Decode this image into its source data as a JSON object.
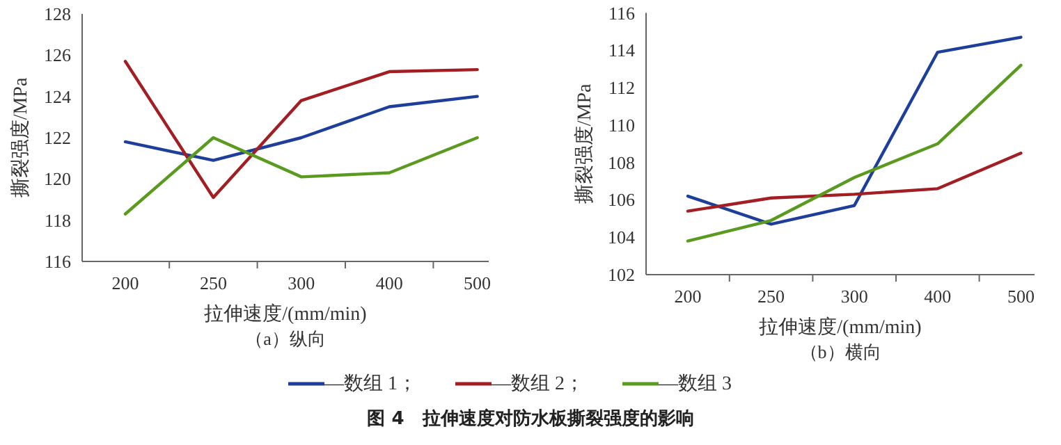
{
  "chart_data": [
    {
      "type": "line",
      "title": "（a）纵向",
      "xlabel": "拉伸速度/(mm/min)",
      "ylabel": "撕裂强度/MPa",
      "categories": [
        "200",
        "250",
        "300",
        "400",
        "500"
      ],
      "ylim": [
        116,
        128
      ],
      "yticks": [
        116,
        118,
        120,
        122,
        124,
        126,
        128
      ],
      "grid": false,
      "legend": "bottom",
      "marker": "none",
      "line_style": "solid",
      "annotations": [
        "图 4　拉伸速度对防水板撕裂强度的影响"
      ],
      "series": [
        {
          "name": "—数组 1；",
          "color": "#1d3f9b",
          "values": [
            121.8,
            120.9,
            122.0,
            123.5,
            124.0
          ]
        },
        {
          "name": "—数组 2；",
          "color": "#a31e22",
          "values": [
            125.7,
            119.1,
            123.8,
            125.2,
            125.3
          ]
        },
        {
          "name": "—数组 3",
          "color": "#5a9a1e",
          "values": [
            118.3,
            122.0,
            120.1,
            120.3,
            122.0
          ]
        }
      ]
    },
    {
      "type": "line",
      "title": "（b）横向",
      "xlabel": "拉伸速度/(mm/min)",
      "ylabel": "撕裂强度/MPa",
      "categories": [
        "200",
        "250",
        "300",
        "400",
        "500"
      ],
      "ylim": [
        102,
        116
      ],
      "yticks": [
        102,
        104,
        106,
        108,
        110,
        112,
        114,
        116
      ],
      "grid": false,
      "marker": "none",
      "line_style": "solid",
      "series": [
        {
          "color": "#1d3f9b",
          "values": [
            106.2,
            104.7,
            105.7,
            113.9,
            114.7
          ]
        },
        {
          "color": "#a31e22",
          "values": [
            105.4,
            106.1,
            106.3,
            106.6,
            108.5
          ]
        },
        {
          "color": "#5a9a1e",
          "values": [
            103.8,
            104.9,
            107.2,
            109.0,
            113.2
          ]
        }
      ]
    }
  ]
}
